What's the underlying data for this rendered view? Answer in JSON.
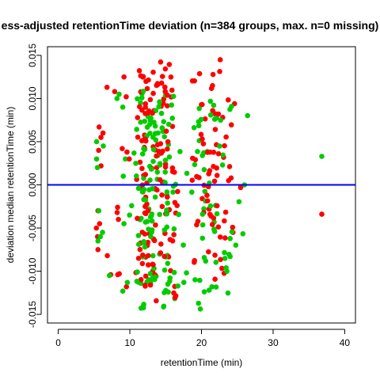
{
  "chart_data": {
    "type": "scatter",
    "title": "ess-adjusted retentionTime deviation (n=384 groups, max. n=0 missing)",
    "xlabel": "retentionTime (min)",
    "ylabel": "deviation median retentionTime (min)",
    "xlim": [
      -1.5,
      41.5
    ],
    "ylim": [
      -0.016,
      0.016
    ],
    "x_ticks": [
      0,
      10,
      20,
      30,
      40
    ],
    "y_ticks": [
      -0.015,
      -0.01,
      -0.005,
      0.0,
      0.005,
      0.01,
      0.015
    ],
    "y_tick_labels": [
      "-0.015",
      "-0.010",
      "-0.005",
      "0.000",
      "0.005",
      "0.010",
      "0.015"
    ],
    "grid": false,
    "reference_line": {
      "y": 0,
      "color": "#0000ff"
    },
    "colors": {
      "red": "#ff0000",
      "green": "#00cc00"
    },
    "clusters": [
      {
        "color": "red",
        "cx": 5.8,
        "xsd": 0.35,
        "seed": 11,
        "y": [
          0.0067,
          0.006,
          0.0055,
          0.004,
          0.0022,
          -0.0045,
          -0.006,
          -0.0075,
          -0.005,
          -0.003
        ]
      },
      {
        "color": "green",
        "cx": 5.7,
        "xsd": 0.3,
        "seed": 12,
        "y": [
          0.005,
          0.0045,
          0.003,
          0.002,
          -0.003,
          -0.0055,
          -0.0065,
          -0.006
        ]
      },
      {
        "color": "red",
        "cx": 8.5,
        "xsd": 1.0,
        "seed": 21,
        "y": [
          0.0125,
          0.0113,
          0.0108,
          0.0102,
          0.0042,
          0.0038,
          0.003,
          -0.0026,
          -0.0032,
          -0.004,
          -0.0082,
          -0.0103,
          -0.0104,
          -0.0104,
          -0.0118
        ]
      },
      {
        "color": "green",
        "cx": 8.8,
        "xsd": 1.2,
        "seed": 22,
        "y": [
          0.0105,
          0.01,
          0.0095,
          0.009,
          0.003,
          0.001,
          -0.0035,
          -0.0045,
          -0.0105,
          -0.0123,
          -0.0113
        ]
      },
      {
        "color": "red",
        "cx": 12.3,
        "xsd": 0.9,
        "seed": 31,
        "n": 80,
        "ymin": -0.0128,
        "ymax": 0.0135
      },
      {
        "color": "green",
        "cx": 12.5,
        "xsd": 0.9,
        "seed": 32,
        "n": 85,
        "ymin": -0.0148,
        "ymax": 0.0112
      },
      {
        "color": "red",
        "cx": 15.0,
        "xsd": 0.8,
        "seed": 41,
        "n": 55,
        "ymin": -0.0135,
        "ymax": 0.0143
      },
      {
        "color": "green",
        "cx": 15.2,
        "xsd": 0.8,
        "seed": 42,
        "n": 50,
        "ymin": -0.0147,
        "ymax": 0.0105
      },
      {
        "color": "red",
        "cx": 20.8,
        "xsd": 1.4,
        "seed": 51,
        "n": 60,
        "ymin": -0.0112,
        "ymax": 0.0145
      },
      {
        "color": "green",
        "cx": 20.5,
        "xsd": 1.4,
        "seed": 52,
        "n": 55,
        "ymin": -0.0147,
        "ymax": 0.0098
      },
      {
        "color": "red",
        "cx": 24.0,
        "xsd": 1.0,
        "seed": 61,
        "n": 14,
        "ymin": -0.0105,
        "ymax": 0.011
      },
      {
        "color": "green",
        "cx": 24.3,
        "xsd": 1.0,
        "seed": 62,
        "n": 12,
        "ymin": -0.011,
        "ymax": 0.0095
      }
    ],
    "points": [
      {
        "x": 36.8,
        "y": 0.0033,
        "color": "green"
      },
      {
        "x": 36.8,
        "y": -0.0034,
        "color": "red"
      },
      {
        "x": 26.0,
        "y": 0.0,
        "color": "green"
      },
      {
        "x": 25.5,
        "y": -0.0002,
        "color": "red"
      }
    ]
  }
}
